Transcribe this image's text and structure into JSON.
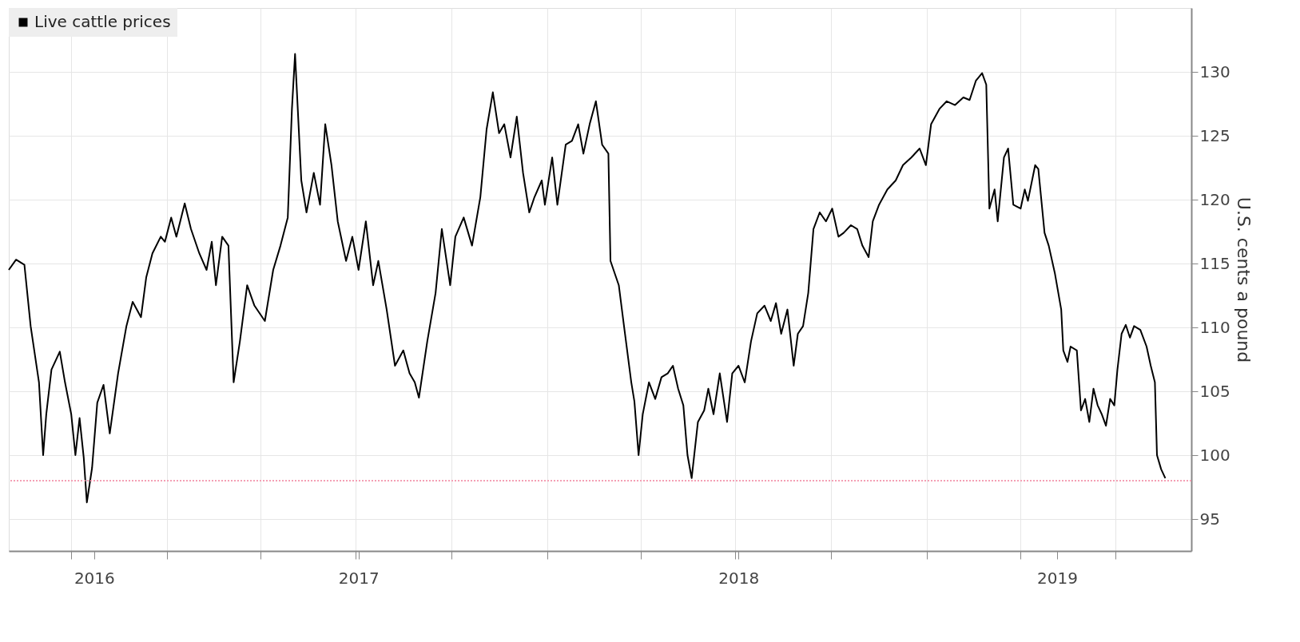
{
  "chart_data": {
    "type": "line",
    "ylabel": "U.S. cents a pound",
    "legend": "top left",
    "grid": true,
    "line_style": "solid",
    "marker": "none",
    "x": [
      "2016-08-02",
      "2016-08-09",
      "2016-08-17",
      "2016-08-23",
      "2016-08-31",
      "2016-09-04",
      "2016-09-07",
      "2016-09-12",
      "2016-09-20",
      "2016-09-25",
      "2016-10-01",
      "2016-10-05",
      "2016-10-09",
      "2016-10-13",
      "2016-10-16",
      "2016-10-21",
      "2016-10-26",
      "2016-11-01",
      "2016-11-07",
      "2016-11-15",
      "2016-11-23",
      "2016-11-29",
      "2016-12-07",
      "2016-12-12",
      "2016-12-18",
      "2016-12-26",
      "2016-12-30",
      "2017-01-05",
      "2017-01-10",
      "2017-01-18",
      "2017-01-24",
      "2017-02-01",
      "2017-02-08",
      "2017-02-13",
      "2017-02-17",
      "2017-02-23",
      "2017-03-01",
      "2017-03-06",
      "2017-03-12",
      "2017-03-19",
      "2017-03-26",
      "2017-04-05",
      "2017-04-13",
      "2017-04-20",
      "2017-04-27",
      "2017-05-01",
      "2017-05-04",
      "2017-05-10",
      "2017-05-15",
      "2017-05-22",
      "2017-05-28",
      "2017-06-02",
      "2017-06-08",
      "2017-06-14",
      "2017-06-22",
      "2017-06-28",
      "2017-07-04",
      "2017-07-11",
      "2017-07-18",
      "2017-07-23",
      "2017-07-31",
      "2017-08-08",
      "2017-08-16",
      "2017-08-22",
      "2017-08-27",
      "2017-08-31",
      "2017-09-08",
      "2017-09-16",
      "2017-09-22",
      "2017-09-30",
      "2017-10-05",
      "2017-10-13",
      "2017-10-21",
      "2017-10-29",
      "2017-11-04",
      "2017-11-10",
      "2017-11-16",
      "2017-11-21",
      "2017-11-27",
      "2017-12-03",
      "2017-12-09",
      "2017-12-15",
      "2017-12-20",
      "2017-12-27",
      "2017-12-30",
      "2018-01-06",
      "2018-01-11",
      "2018-01-19",
      "2018-01-25",
      "2018-01-31",
      "2018-02-05",
      "2018-02-11",
      "2018-02-17",
      "2018-02-23",
      "2018-03-01",
      "2018-03-03",
      "2018-03-11",
      "2018-03-16",
      "2018-03-23",
      "2018-03-26",
      "2018-03-30",
      "2018-04-03",
      "2018-04-09",
      "2018-04-15",
      "2018-04-21",
      "2018-04-27",
      "2018-05-02",
      "2018-05-07",
      "2018-05-12",
      "2018-05-16",
      "2018-05-20",
      "2018-05-26",
      "2018-06-01",
      "2018-06-05",
      "2018-06-10",
      "2018-06-16",
      "2018-06-23",
      "2018-06-28",
      "2018-07-04",
      "2018-07-10",
      "2018-07-16",
      "2018-07-22",
      "2018-07-29",
      "2018-08-04",
      "2018-08-09",
      "2018-08-14",
      "2018-08-20",
      "2018-08-26",
      "2018-08-30",
      "2018-09-04",
      "2018-09-09",
      "2018-09-14",
      "2018-09-20",
      "2018-09-26",
      "2018-10-02",
      "2018-10-08",
      "2018-10-13",
      "2018-10-20",
      "2018-10-26",
      "2018-10-31",
      "2018-11-06",
      "2018-11-10",
      "2018-11-16",
      "2018-11-24",
      "2018-12-02",
      "2018-12-09",
      "2018-12-17",
      "2018-12-25",
      "2018-12-31",
      "2019-01-05",
      "2019-01-13",
      "2019-01-20",
      "2019-01-28",
      "2019-02-05",
      "2019-02-11",
      "2019-02-17",
      "2019-02-23",
      "2019-02-27",
      "2019-03-02",
      "2019-03-07",
      "2019-03-10",
      "2019-03-16",
      "2019-03-20",
      "2019-03-25",
      "2019-04-01",
      "2019-04-05",
      "2019-04-08",
      "2019-04-15",
      "2019-04-18",
      "2019-04-24",
      "2019-04-28",
      "2019-05-04",
      "2019-05-10",
      "2019-05-12",
      "2019-05-16",
      "2019-05-19",
      "2019-05-25",
      "2019-05-29",
      "2019-06-02",
      "2019-06-06",
      "2019-06-10",
      "2019-06-14",
      "2019-06-18",
      "2019-06-22",
      "2019-06-26",
      "2019-06-30",
      "2019-07-03",
      "2019-07-07",
      "2019-07-11",
      "2019-07-15",
      "2019-07-19",
      "2019-07-25",
      "2019-07-31",
      "2019-08-04",
      "2019-08-08",
      "2019-08-10",
      "2019-08-14",
      "2019-08-18"
    ],
    "series": [
      {
        "name": "Live cattle prices",
        "color": "#000000",
        "values": [
          114.5,
          115.3,
          114.9,
          110.1,
          105.7,
          100.0,
          103.2,
          106.7,
          108.1,
          105.7,
          103.2,
          100.0,
          102.9,
          99.8,
          96.3,
          99.0,
          104.1,
          105.5,
          101.7,
          106.4,
          110.1,
          112.0,
          110.8,
          113.9,
          115.8,
          117.1,
          116.7,
          118.6,
          117.1,
          119.7,
          117.7,
          115.8,
          114.5,
          116.7,
          113.3,
          117.1,
          116.4,
          105.7,
          108.9,
          113.3,
          111.7,
          110.5,
          114.5,
          116.4,
          118.6,
          127.1,
          131.4,
          121.5,
          119.0,
          122.1,
          119.6,
          125.9,
          122.7,
          118.3,
          115.2,
          117.1,
          114.5,
          118.3,
          113.3,
          115.2,
          111.4,
          107.0,
          108.2,
          106.4,
          105.7,
          104.5,
          108.9,
          112.7,
          117.7,
          113.3,
          117.1,
          118.6,
          116.4,
          120.2,
          125.5,
          128.4,
          125.2,
          125.9,
          123.3,
          126.5,
          122.1,
          119.0,
          120.2,
          121.5,
          119.6,
          123.3,
          119.6,
          124.3,
          124.6,
          125.9,
          123.6,
          125.9,
          127.7,
          124.3,
          123.6,
          115.2,
          113.3,
          110.1,
          105.7,
          104.2,
          100.0,
          103.2,
          105.7,
          104.4,
          106.1,
          106.4,
          107.0,
          105.2,
          103.9,
          100.0,
          98.2,
          102.6,
          103.5,
          105.2,
          103.2,
          106.4,
          102.6,
          106.4,
          107.0,
          105.7,
          108.9,
          111.1,
          111.7,
          110.5,
          111.9,
          109.5,
          111.4,
          107.0,
          109.5,
          110.1,
          112.7,
          117.7,
          119.0,
          118.3,
          119.3,
          117.1,
          117.4,
          118.0,
          117.7,
          116.4,
          115.5,
          118.3,
          119.6,
          120.8,
          121.5,
          122.7,
          123.3,
          124.0,
          122.7,
          125.9,
          127.1,
          127.7,
          127.4,
          128.0,
          127.8,
          129.3,
          129.9,
          129.0,
          119.3,
          120.8,
          118.3,
          123.3,
          124.0,
          119.6,
          119.3,
          120.8,
          119.9,
          122.7,
          122.4,
          117.4,
          116.4,
          114.2,
          111.4,
          108.2,
          107.3,
          108.5,
          108.2,
          103.5,
          104.4,
          102.6,
          105.2,
          103.9,
          103.2,
          102.3,
          104.4,
          103.9,
          106.7,
          109.5,
          110.2,
          109.2,
          110.1,
          109.8,
          108.5,
          107.0,
          105.7,
          100.0,
          98.9,
          98.2
        ]
      }
    ],
    "xlim": [
      "2016-08-02",
      "2019-09-12"
    ],
    "xticks": [
      {
        "value": "2016-10-01",
        "label": null
      },
      {
        "value": "2016-10-23",
        "label": "2016"
      },
      {
        "value": "2017-01-01",
        "label": null
      },
      {
        "value": "2017-04-01",
        "label": null
      },
      {
        "value": "2017-07-01",
        "label": null
      },
      {
        "value": "2017-07-04",
        "label": "2017"
      },
      {
        "value": "2017-10-01",
        "label": null
      },
      {
        "value": "2018-01-01",
        "label": null
      },
      {
        "value": "2018-04-01",
        "label": null
      },
      {
        "value": "2018-07-01",
        "label": null
      },
      {
        "value": "2018-07-04",
        "label": "2018"
      },
      {
        "value": "2018-10-01",
        "label": null
      },
      {
        "value": "2019-01-01",
        "label": null
      },
      {
        "value": "2019-04-01",
        "label": null
      },
      {
        "value": "2019-05-06",
        "label": "2019"
      },
      {
        "value": "2019-07-01",
        "label": null
      }
    ],
    "ylim": [
      92.5,
      135
    ],
    "yticks": [
      95,
      100,
      105,
      110,
      115,
      120,
      125,
      130
    ],
    "ref_lines": [
      {
        "axis": "y",
        "value": 98,
        "color": "#f4a0b4",
        "line_style": "dotted"
      }
    ]
  }
}
